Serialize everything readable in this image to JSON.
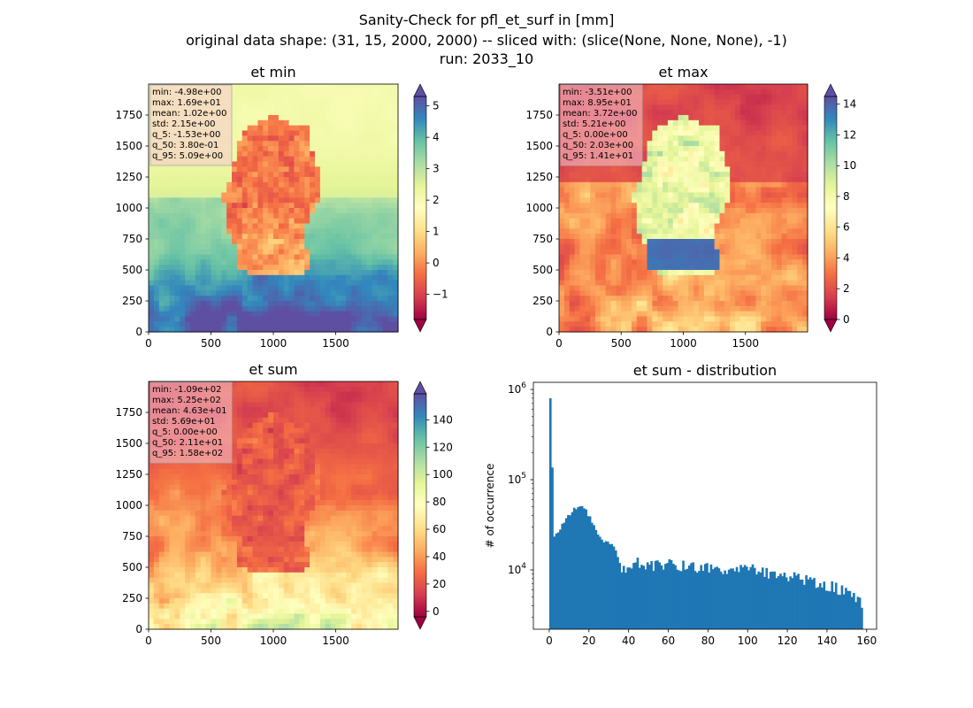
{
  "figure": {
    "title_lines": [
      "Sanity-Check for pfl_et_surf in [mm]",
      "original data shape: (31, 15, 2000, 2000) -- sliced with: (slice(None, None, None), -1)",
      "run: 2033_10"
    ]
  },
  "colors": {
    "hist_bar": "#1f77b4",
    "stats_box_bg": "#f5c6cf",
    "cmap_stops": [
      "#9e0142",
      "#d53e4f",
      "#f46d43",
      "#fdae61",
      "#fee08b",
      "#ffffbf",
      "#e6f598",
      "#abdda4",
      "#66c2a5",
      "#3288bd",
      "#5e4fa2"
    ]
  },
  "chart_data": [
    {
      "type": "heatmap",
      "title": "et min",
      "colormap": "Spectral",
      "xlim": [
        0,
        2000
      ],
      "ylim": [
        0,
        2000
      ],
      "xticks": [
        "0",
        "500",
        "1000",
        "1500"
      ],
      "yticks": [
        "0",
        "250",
        "500",
        "750",
        "1000",
        "1250",
        "1500",
        "1750"
      ],
      "colorbar": {
        "range": [
          -1.8,
          5.3
        ],
        "ticks": [
          "−1",
          "0",
          "1",
          "2",
          "3",
          "4",
          "5"
        ],
        "tick_values": [
          -1,
          0,
          1,
          2,
          3,
          4,
          5
        ]
      },
      "stats": [
        "min: -4.98e+00",
        "max: 1.69e+01",
        "mean: 1.02e+00",
        "std: 2.15e+00",
        "q_5: -1.53e+00",
        "q_50: 3.80e-01",
        "q_95: 5.09e+00"
      ]
    },
    {
      "type": "heatmap",
      "title": "et max",
      "colormap": "Spectral",
      "xlim": [
        0,
        2000
      ],
      "ylim": [
        0,
        2000
      ],
      "xticks": [
        "0",
        "500",
        "1000",
        "1500"
      ],
      "yticks": [
        "0",
        "250",
        "500",
        "750",
        "1000",
        "1250",
        "1500",
        "1750"
      ],
      "colorbar": {
        "range": [
          0,
          14.5
        ],
        "ticks": [
          "0",
          "2",
          "4",
          "6",
          "8",
          "10",
          "12",
          "14"
        ],
        "tick_values": [
          0,
          2,
          4,
          6,
          8,
          10,
          12,
          14
        ]
      },
      "stats": [
        "min: -3.51e+00",
        "max: 8.95e+01",
        "mean: 3.72e+00",
        "std: 5.21e+00",
        "q_5: 0.00e+00",
        "q_50: 2.03e+00",
        "q_95: 1.41e+01"
      ]
    },
    {
      "type": "heatmap",
      "title": "et sum",
      "colormap": "Spectral",
      "xlim": [
        0,
        2000
      ],
      "ylim": [
        0,
        2000
      ],
      "xticks": [
        "0",
        "500",
        "1000",
        "1500"
      ],
      "yticks": [
        "0",
        "250",
        "500",
        "750",
        "1000",
        "1250",
        "1500",
        "1750"
      ],
      "colorbar": {
        "range": [
          -4,
          159
        ],
        "ticks": [
          "0",
          "20",
          "40",
          "60",
          "80",
          "100",
          "120",
          "140"
        ],
        "tick_values": [
          0,
          20,
          40,
          60,
          80,
          100,
          120,
          140
        ]
      },
      "stats": [
        "min: -1.09e+02",
        "max: 5.25e+02",
        "mean: 4.63e+01",
        "std: 5.69e+01",
        "q_5: 0.00e+00",
        "q_50: 2.11e+01",
        "q_95: 1.58e+02"
      ]
    },
    {
      "type": "bar",
      "title": "et sum - distribution",
      "ylabel": "# of occurrence",
      "xlabel": "",
      "yscale": "log",
      "xlim": [
        -8,
        165
      ],
      "ylim": [
        2200,
        1200000
      ],
      "xticks": [
        0,
        20,
        40,
        60,
        80,
        100,
        120,
        140,
        160
      ],
      "yticks": [
        {
          "value": 10000,
          "label": "10^4"
        },
        {
          "value": 100000,
          "label": "10^5"
        },
        {
          "value": 1000000,
          "label": "10^6"
        }
      ],
      "bin_width": 1,
      "x": [
        0,
        2,
        5,
        8,
        10,
        12,
        14,
        16,
        18,
        20,
        22,
        24,
        26,
        28,
        30,
        32,
        34,
        35,
        37,
        40,
        45,
        50,
        55,
        60,
        65,
        70,
        75,
        80,
        85,
        90,
        95,
        100,
        105,
        110,
        115,
        120,
        125,
        130,
        135,
        140,
        145,
        150,
        155,
        157
      ],
      "values": [
        800000,
        24000,
        29000,
        36000,
        42000,
        47000,
        52000,
        50000,
        45000,
        38000,
        30000,
        25000,
        22000,
        20000,
        19500,
        17500,
        14500,
        12000,
        10200,
        11500,
        12000,
        11500,
        11000,
        11800,
        10800,
        11200,
        11000,
        10500,
        11000,
        10200,
        10600,
        10200,
        9800,
        9300,
        9000,
        8700,
        8300,
        7900,
        7300,
        6800,
        6200,
        5600,
        4800,
        4400
      ]
    }
  ]
}
